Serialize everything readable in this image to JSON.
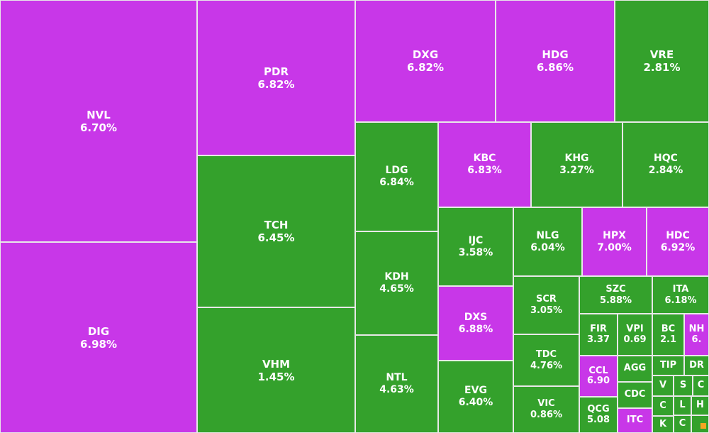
{
  "colors": {
    "ceiling": "#c837e8",
    "up": "#34a12c",
    "border": "#e8e8e8"
  },
  "chart_data": {
    "type": "treemap",
    "items": [
      {
        "symbol": "NVL",
        "change": "6.70%",
        "status": "ceiling"
      },
      {
        "symbol": "DIG",
        "change": "6.98%",
        "status": "ceiling"
      },
      {
        "symbol": "PDR",
        "change": "6.82%",
        "status": "ceiling"
      },
      {
        "symbol": "TCH",
        "change": "6.45%",
        "status": "up"
      },
      {
        "symbol": "VHM",
        "change": "1.45%",
        "status": "up"
      },
      {
        "symbol": "DXG",
        "change": "6.82%",
        "status": "ceiling"
      },
      {
        "symbol": "HDG",
        "change": "6.86%",
        "status": "ceiling"
      },
      {
        "symbol": "VRE",
        "change": "2.81%",
        "status": "up"
      },
      {
        "symbol": "LDG",
        "change": "6.84%",
        "status": "up"
      },
      {
        "symbol": "KDH",
        "change": "4.65%",
        "status": "up"
      },
      {
        "symbol": "NTL",
        "change": "4.63%",
        "status": "up"
      },
      {
        "symbol": "KBC",
        "change": "6.83%",
        "status": "ceiling"
      },
      {
        "symbol": "KHG",
        "change": "3.27%",
        "status": "up"
      },
      {
        "symbol": "HQC",
        "change": "2.84%",
        "status": "up"
      },
      {
        "symbol": "IJC",
        "change": "3.58%",
        "status": "up"
      },
      {
        "symbol": "DXS",
        "change": "6.88%",
        "status": "ceiling"
      },
      {
        "symbol": "EVG",
        "change": "6.40%",
        "status": "up"
      },
      {
        "symbol": "NLG",
        "change": "6.04%",
        "status": "up"
      },
      {
        "symbol": "HPX",
        "change": "7.00%",
        "status": "ceiling"
      },
      {
        "symbol": "HDC",
        "change": "6.92%",
        "status": "ceiling"
      },
      {
        "symbol": "SCR",
        "change": "3.05%",
        "status": "up"
      },
      {
        "symbol": "TDC",
        "change": "4.76%",
        "status": "up"
      },
      {
        "symbol": "VIC",
        "change": "0.86%",
        "status": "up"
      },
      {
        "symbol": "SZC",
        "change": "5.88%",
        "status": "up"
      },
      {
        "symbol": "ITA",
        "change": "6.18%",
        "status": "up"
      },
      {
        "symbol": "FIR",
        "change": "3.37",
        "status": "up"
      },
      {
        "symbol": "VPI",
        "change": "0.69",
        "status": "up"
      },
      {
        "symbol": "BC",
        "change": "2.1",
        "status": "up"
      },
      {
        "symbol": "NH",
        "change": "6.",
        "status": "ceiling"
      },
      {
        "symbol": "CCL",
        "change": "6.90",
        "status": "ceiling"
      },
      {
        "symbol": "AGG",
        "change": "",
        "status": "up"
      },
      {
        "symbol": "TIP",
        "change": "",
        "status": "up"
      },
      {
        "symbol": "DR",
        "change": "",
        "status": "up"
      },
      {
        "symbol": "CDC",
        "change": "",
        "status": "up"
      },
      {
        "symbol": "V",
        "change": "",
        "status": "up"
      },
      {
        "symbol": "S",
        "change": "",
        "status": "up"
      },
      {
        "symbol": "C",
        "change": "",
        "status": "up"
      },
      {
        "symbol": "QCG",
        "change": "5.08",
        "status": "up"
      },
      {
        "symbol": "C",
        "change": "",
        "status": "up"
      },
      {
        "symbol": "L",
        "change": "",
        "status": "up"
      },
      {
        "symbol": "H",
        "change": "",
        "status": "up"
      },
      {
        "symbol": "ITC",
        "change": "",
        "status": "ceiling"
      },
      {
        "symbol": "K",
        "change": "",
        "status": "up"
      },
      {
        "symbol": "C",
        "change": "",
        "status": "up"
      }
    ]
  }
}
